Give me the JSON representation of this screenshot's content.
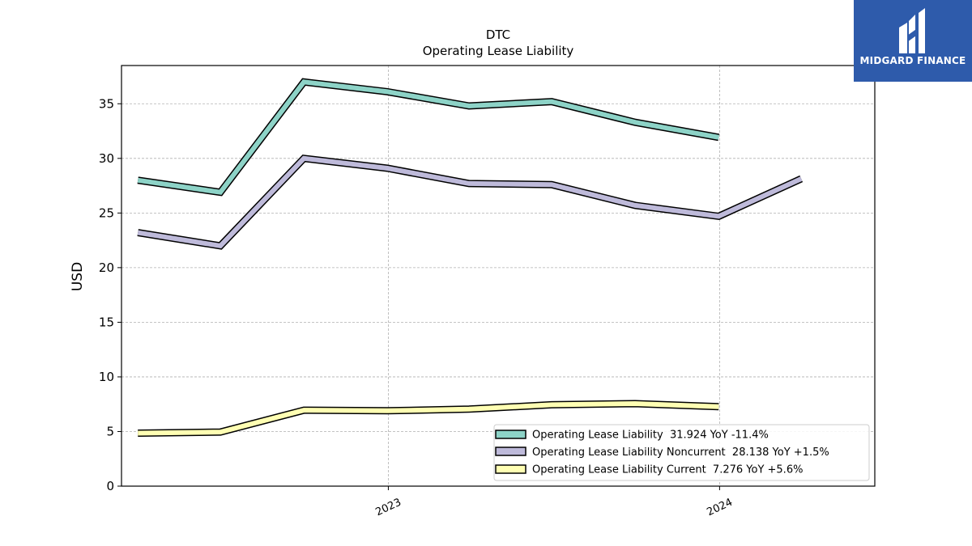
{
  "chart_data": {
    "type": "line",
    "title": "DTC",
    "subtitle": "Operating Lease Liability",
    "xlabel": "",
    "ylabel": "USD",
    "ylim": [
      0,
      38.5
    ],
    "xlim": [
      "2022-03-13",
      "2024-06-20"
    ],
    "yticks": [
      0,
      5,
      10,
      15,
      20,
      25,
      30,
      35
    ],
    "xticks": [
      {
        "date": "2023-01-01",
        "label": "2023"
      },
      {
        "date": "2024-01-01",
        "label": "2024"
      }
    ],
    "grid": true,
    "legend_position": "lower-right",
    "series": [
      {
        "name": "Operating Lease Liability  31.924 YoY -11.4%",
        "color": "#8dd3c7",
        "points": [
          [
            "2022-03-31",
            28.0
          ],
          [
            "2022-06-30",
            26.9
          ],
          [
            "2022-09-30",
            37.0
          ],
          [
            "2022-12-31",
            36.1
          ],
          [
            "2023-03-31",
            34.8
          ],
          [
            "2023-06-30",
            35.2
          ],
          [
            "2023-09-30",
            33.3
          ],
          [
            "2023-12-31",
            31.924
          ]
        ]
      },
      {
        "name": "Operating Lease Liability Noncurrent  28.138 YoY +1.5%",
        "color": "#bebada",
        "points": [
          [
            "2022-03-31",
            23.2
          ],
          [
            "2022-06-30",
            22.0
          ],
          [
            "2022-09-30",
            30.0
          ],
          [
            "2022-12-31",
            29.1
          ],
          [
            "2023-03-31",
            27.7
          ],
          [
            "2023-06-30",
            27.6
          ],
          [
            "2023-09-30",
            25.7
          ],
          [
            "2023-12-31",
            24.7
          ],
          [
            "2024-03-31",
            28.138
          ]
        ]
      },
      {
        "name": "Operating Lease Liability Current  7.276 YoY +5.6%",
        "color": "#ffffb3",
        "points": [
          [
            "2022-03-31",
            4.85
          ],
          [
            "2022-06-30",
            4.95
          ],
          [
            "2022-09-30",
            6.95
          ],
          [
            "2022-12-31",
            6.9
          ],
          [
            "2023-03-31",
            7.05
          ],
          [
            "2023-06-30",
            7.45
          ],
          [
            "2023-09-30",
            7.55
          ],
          [
            "2023-12-31",
            7.276
          ]
        ]
      }
    ]
  },
  "logo": {
    "text": "MIDGARD FINANCE",
    "background": "#2e5bab"
  }
}
